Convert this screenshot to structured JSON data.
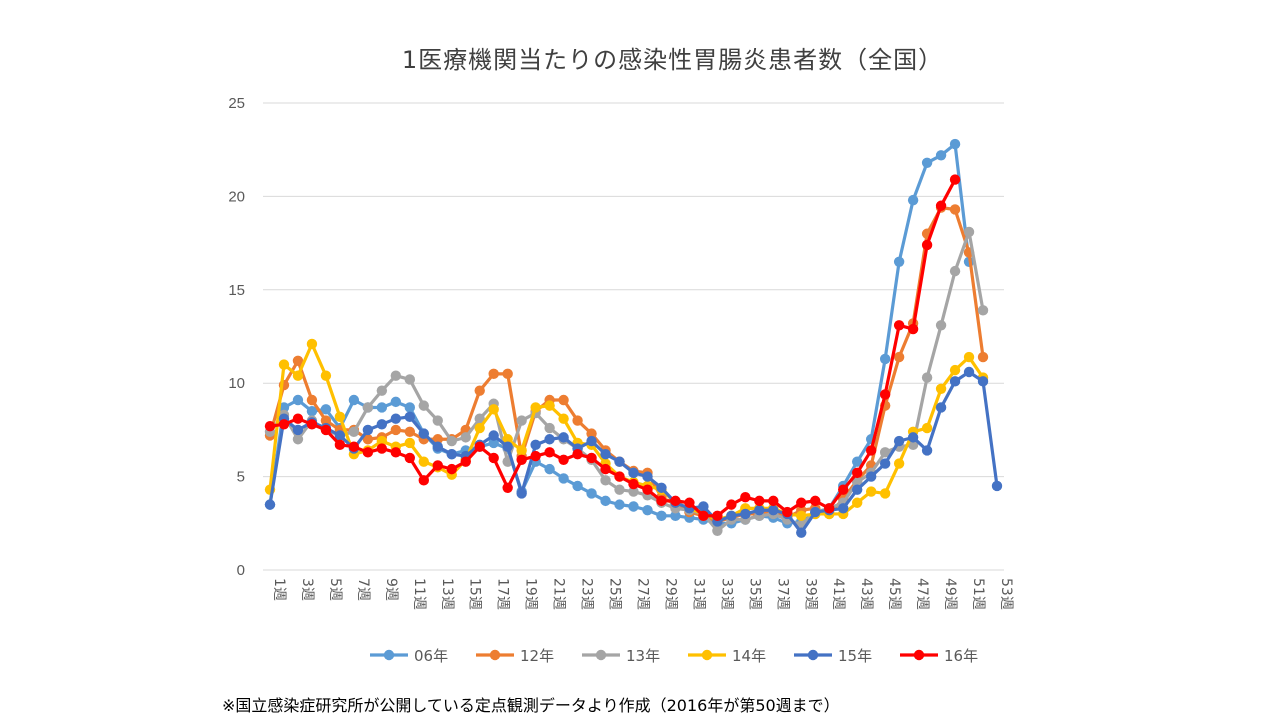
{
  "chart_data": {
    "type": "line",
    "title": "1医療機関当たりの感染性胃腸炎患者数（全国）",
    "footnote": "※国立感染症研究所が公開している定点観測データより作成（2016年が第50週まで）",
    "ylim": [
      0,
      25
    ],
    "yticks": [
      "0",
      "5",
      "10",
      "15",
      "20",
      "25"
    ],
    "grid": true,
    "legend_position": "bottom",
    "x_label_step": 2,
    "x": [
      "1週",
      "2週",
      "3週",
      "4週",
      "5週",
      "6週",
      "7週",
      "8週",
      "9週",
      "10週",
      "11週",
      "12週",
      "13週",
      "14週",
      "15週",
      "16週",
      "17週",
      "18週",
      "19週",
      "20週",
      "21週",
      "22週",
      "23週",
      "24週",
      "25週",
      "26週",
      "27週",
      "28週",
      "29週",
      "30週",
      "31週",
      "32週",
      "33週",
      "34週",
      "35週",
      "36週",
      "37週",
      "38週",
      "39週",
      "40週",
      "41週",
      "42週",
      "43週",
      "44週",
      "45週",
      "46週",
      "47週",
      "48週",
      "49週",
      "50週",
      "51週",
      "52週",
      "53週"
    ],
    "series": [
      {
        "name": "06年",
        "color": "#5B9BD5",
        "values": [
          3.5,
          8.7,
          9.1,
          8.5,
          8.6,
          7.6,
          9.1,
          8.7,
          8.7,
          9.0,
          8.7,
          7.3,
          6.5,
          6.2,
          6.4,
          6.6,
          6.8,
          6.5,
          4.2,
          5.8,
          5.4,
          4.9,
          4.5,
          4.1,
          3.7,
          3.5,
          3.4,
          3.2,
          2.9,
          2.9,
          2.8,
          2.7,
          2.5,
          2.5,
          2.7,
          2.9,
          2.8,
          2.5,
          2.6,
          3.0,
          3.3,
          4.5,
          5.8,
          7.0,
          11.3,
          16.5,
          19.8,
          21.8,
          22.2,
          22.8,
          16.5,
          null,
          null
        ]
      },
      {
        "name": "12年",
        "color": "#ED7D31",
        "values": [
          7.2,
          9.9,
          11.2,
          9.1,
          8.0,
          7.5,
          7.5,
          7.0,
          7.1,
          7.5,
          7.4,
          7.0,
          7.0,
          7.0,
          7.5,
          9.6,
          10.5,
          10.5,
          6.1,
          8.5,
          9.1,
          9.1,
          8.0,
          7.3,
          6.4,
          5.8,
          5.3,
          5.2,
          3.9,
          3.5,
          3.1,
          2.9,
          2.6,
          2.8,
          3.0,
          3.0,
          3.2,
          2.8,
          3.2,
          3.3,
          3.0,
          3.8,
          4.8,
          5.6,
          8.8,
          11.4,
          13.2,
          18.0,
          19.4,
          19.3,
          17.0,
          11.4,
          null
        ]
      },
      {
        "name": "13年",
        "color": "#A5A5A5",
        "values": [
          7.4,
          8.3,
          7.0,
          8.0,
          7.5,
          7.2,
          7.4,
          8.7,
          9.6,
          10.4,
          10.2,
          8.8,
          8.0,
          6.9,
          7.1,
          8.1,
          8.9,
          5.8,
          8.0,
          8.4,
          7.6,
          7.0,
          6.5,
          5.9,
          4.8,
          4.3,
          4.2,
          4.0,
          3.6,
          3.3,
          3.2,
          3.0,
          2.1,
          2.7,
          2.7,
          2.9,
          3.0,
          2.7,
          2.4,
          3.1,
          3.3,
          3.6,
          4.7,
          5.2,
          6.3,
          6.6,
          6.7,
          10.3,
          13.1,
          16.0,
          18.1,
          13.9,
          null
        ]
      },
      {
        "name": "14年",
        "color": "#FFC000",
        "values": [
          4.3,
          11.0,
          10.4,
          12.1,
          10.4,
          8.2,
          6.2,
          6.4,
          6.9,
          6.6,
          6.8,
          5.8,
          5.5,
          5.1,
          5.9,
          7.6,
          8.6,
          7.0,
          6.4,
          8.7,
          8.8,
          8.1,
          6.8,
          6.7,
          5.7,
          5.0,
          4.7,
          4.5,
          4.3,
          3.6,
          3.3,
          3.0,
          2.7,
          2.9,
          3.3,
          3.3,
          3.3,
          3.0,
          2.9,
          3.0,
          3.0,
          3.0,
          3.6,
          4.2,
          4.1,
          5.7,
          7.4,
          7.6,
          9.7,
          10.7,
          11.4,
          10.3,
          null
        ]
      },
      {
        "name": "15年",
        "color": "#4472C4",
        "values": [
          3.5,
          8.1,
          7.5,
          7.9,
          7.6,
          7.2,
          6.5,
          7.5,
          7.8,
          8.1,
          8.2,
          7.3,
          6.6,
          6.2,
          6.1,
          6.7,
          7.2,
          6.6,
          4.1,
          6.7,
          7.0,
          7.1,
          6.5,
          6.9,
          6.2,
          5.8,
          5.2,
          5.0,
          4.4,
          3.6,
          3.3,
          3.4,
          2.6,
          2.9,
          3.0,
          3.2,
          3.2,
          3.0,
          2.0,
          3.1,
          3.2,
          3.3,
          4.3,
          5.0,
          5.7,
          6.9,
          7.1,
          6.4,
          8.7,
          10.1,
          10.6,
          10.1,
          4.5
        ]
      },
      {
        "name": "16年",
        "color": "#FF0000",
        "values": [
          7.7,
          7.8,
          8.1,
          7.8,
          7.5,
          6.7,
          6.6,
          6.3,
          6.5,
          6.3,
          6.0,
          4.8,
          5.6,
          5.4,
          5.8,
          6.6,
          6.0,
          4.4,
          5.9,
          6.1,
          6.3,
          5.9,
          6.2,
          6.0,
          5.4,
          5.0,
          4.6,
          4.3,
          3.7,
          3.7,
          3.6,
          2.9,
          2.9,
          3.5,
          3.9,
          3.7,
          3.7,
          3.1,
          3.6,
          3.7,
          3.3,
          4.3,
          5.2,
          6.4,
          9.4,
          13.1,
          12.9,
          17.4,
          19.5,
          20.9,
          null,
          null,
          null
        ]
      }
    ]
  }
}
